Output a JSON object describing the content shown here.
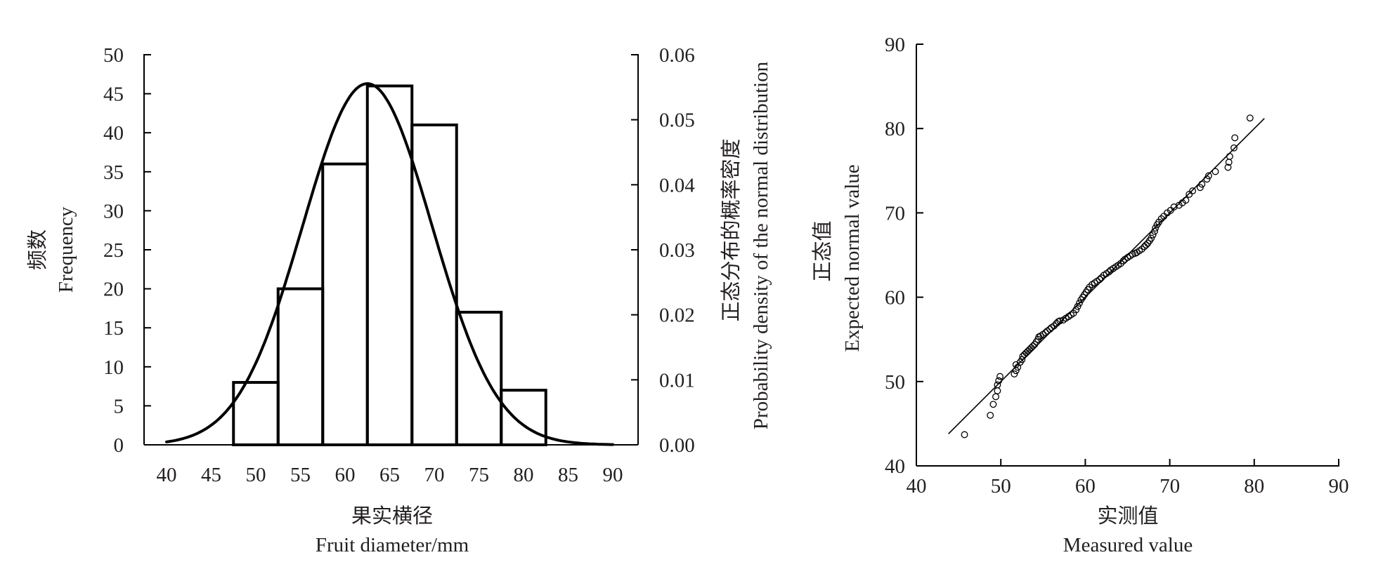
{
  "chart_data": [
    {
      "type": "bar",
      "subtype": "histogram-with-normal-curve",
      "title": "",
      "xlabel_cn": "果实横径",
      "xlabel": "Fruit diameter/mm",
      "ylabel_cn": "频数",
      "ylabel": "Frequency",
      "y2label_cn": "正态分布的概率密度",
      "y2label": "Probability density of the normal distribution",
      "xlim": [
        38,
        93
      ],
      "ylim": [
        0,
        50
      ],
      "y2lim": [
        0,
        0.06
      ],
      "x_ticks": [
        "40",
        "45",
        "50",
        "55",
        "60",
        "65",
        "70",
        "75",
        "80",
        "85",
        "90"
      ],
      "y_ticks": [
        "0",
        "5",
        "10",
        "15",
        "20",
        "25",
        "30",
        "35",
        "40",
        "45",
        "50"
      ],
      "y2_ticks": [
        "0.00",
        "0.01",
        "0.02",
        "0.03",
        "0.04",
        "0.05",
        "0.06"
      ],
      "bins": [
        {
          "from": 47.5,
          "to": 52.5,
          "value": 8
        },
        {
          "from": 52.5,
          "to": 57.5,
          "value": 20
        },
        {
          "from": 57.5,
          "to": 62.5,
          "value": 36
        },
        {
          "from": 62.5,
          "to": 67.5,
          "value": 46
        },
        {
          "from": 67.5,
          "to": 72.5,
          "value": 41
        },
        {
          "from": 72.5,
          "to": 77.5,
          "value": 17
        },
        {
          "from": 77.5,
          "to": 82.5,
          "value": 7
        }
      ],
      "normal_curve": {
        "mean": 62.5,
        "sd": 7.25,
        "peak_frequency": 46.3,
        "peak_density": 0.0556,
        "x_range": [
          40,
          90
        ]
      },
      "grid": false,
      "legend": "none"
    },
    {
      "type": "scatter",
      "subtype": "normal-qq-plot",
      "title": "",
      "xlabel_cn": "实测值",
      "xlabel": "Measured value",
      "ylabel_cn": "正态值",
      "ylabel": "Expected normal value",
      "xlim": [
        40,
        90
      ],
      "ylim": [
        40,
        90
      ],
      "x_ticks": [
        "40",
        "50",
        "60",
        "70",
        "80",
        "90"
      ],
      "y_ticks": [
        "40",
        "50",
        "60",
        "70",
        "80",
        "90"
      ],
      "reference_line": {
        "from": [
          43.8,
          43.8
        ],
        "to": [
          81.2,
          81.2
        ]
      },
      "points": [
        [
          45.7,
          43.7
        ],
        [
          48.75,
          46.0
        ],
        [
          49.1,
          47.3
        ],
        [
          49.4,
          48.2
        ],
        [
          49.6,
          48.9
        ],
        [
          49.6,
          49.6
        ],
        [
          49.75,
          50.1
        ],
        [
          49.9,
          50.6
        ],
        [
          51.6,
          50.9
        ],
        [
          51.8,
          51.3
        ],
        [
          51.8,
          52.0
        ],
        [
          52.0,
          51.7
        ],
        [
          52.3,
          52.3
        ],
        [
          52.5,
          52.6
        ],
        [
          52.6,
          53.0
        ],
        [
          52.8,
          53.2
        ],
        [
          53.0,
          53.4
        ],
        [
          53.2,
          53.6
        ],
        [
          53.4,
          53.8
        ],
        [
          53.6,
          54.0
        ],
        [
          53.8,
          54.2
        ],
        [
          54.0,
          54.4
        ],
        [
          54.2,
          54.7
        ],
        [
          54.4,
          55.0
        ],
        [
          54.5,
          55.3
        ],
        [
          54.7,
          55.4
        ],
        [
          55.0,
          55.6
        ],
        [
          55.3,
          55.8
        ],
        [
          55.5,
          56.0
        ],
        [
          55.8,
          56.2
        ],
        [
          56.0,
          56.4
        ],
        [
          56.3,
          56.6
        ],
        [
          56.6,
          56.9
        ],
        [
          56.8,
          57.1
        ],
        [
          57.0,
          57.2
        ],
        [
          57.4,
          57.3
        ],
        [
          57.7,
          57.5
        ],
        [
          58.0,
          57.7
        ],
        [
          58.3,
          57.9
        ],
        [
          58.6,
          58.1
        ],
        [
          58.9,
          58.5
        ],
        [
          59.1,
          58.9
        ],
        [
          59.3,
          59.3
        ],
        [
          59.5,
          59.7
        ],
        [
          59.7,
          60.0
        ],
        [
          59.9,
          60.3
        ],
        [
          60.1,
          60.6
        ],
        [
          60.3,
          60.9
        ],
        [
          60.5,
          61.2
        ],
        [
          60.8,
          61.5
        ],
        [
          61.1,
          61.7
        ],
        [
          61.4,
          61.9
        ],
        [
          61.7,
          62.1
        ],
        [
          61.9,
          62.3
        ],
        [
          62.2,
          62.6
        ],
        [
          62.5,
          62.8
        ],
        [
          62.8,
          63.0
        ],
        [
          63.0,
          63.2
        ],
        [
          63.3,
          63.4
        ],
        [
          63.6,
          63.6
        ],
        [
          63.9,
          63.8
        ],
        [
          64.2,
          64.0
        ],
        [
          64.5,
          64.3
        ],
        [
          64.7,
          64.5
        ],
        [
          65.0,
          64.7
        ],
        [
          65.3,
          64.9
        ],
        [
          65.6,
          65.1
        ],
        [
          65.9,
          65.2
        ],
        [
          66.1,
          65.3
        ],
        [
          66.4,
          65.5
        ],
        [
          66.7,
          65.7
        ],
        [
          67.0,
          66.0
        ],
        [
          67.2,
          66.2
        ],
        [
          67.4,
          66.4
        ],
        [
          67.6,
          66.7
        ],
        [
          67.8,
          67.0
        ],
        [
          68.0,
          67.4
        ],
        [
          68.2,
          67.8
        ],
        [
          68.3,
          68.2
        ],
        [
          68.5,
          68.6
        ],
        [
          68.7,
          68.9
        ],
        [
          69.0,
          69.3
        ],
        [
          69.3,
          69.6
        ],
        [
          69.7,
          70.0
        ],
        [
          70.1,
          70.3
        ],
        [
          70.5,
          70.7
        ],
        [
          71.1,
          70.9
        ],
        [
          71.5,
          71.2
        ],
        [
          71.9,
          71.5
        ],
        [
          72.3,
          72.2
        ],
        [
          72.7,
          72.6
        ],
        [
          73.6,
          73.0
        ],
        [
          73.8,
          73.4
        ],
        [
          74.4,
          74.0
        ],
        [
          74.6,
          74.4
        ],
        [
          75.4,
          74.9
        ],
        [
          76.9,
          75.4
        ],
        [
          77.0,
          76.0
        ],
        [
          77.1,
          76.7
        ],
        [
          77.6,
          77.7
        ],
        [
          77.7,
          78.9
        ],
        [
          79.5,
          81.25
        ]
      ],
      "grid": false,
      "legend": "none"
    }
  ]
}
